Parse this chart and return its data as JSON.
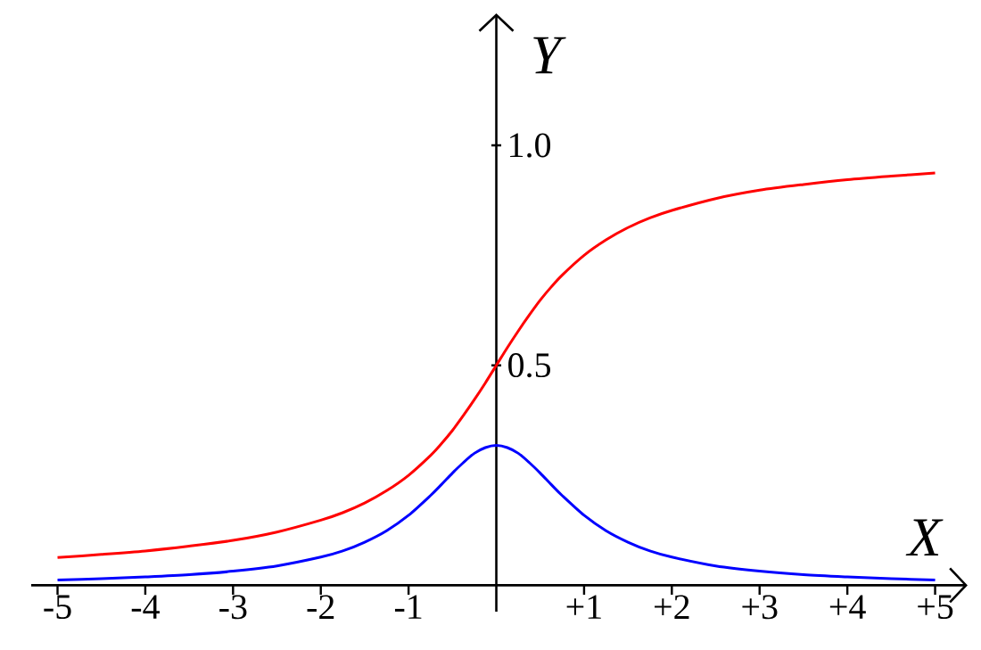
{
  "chart_data": {
    "type": "line",
    "xlabel": "X",
    "ylabel": "Y",
    "x": [
      -5,
      -4.5,
      -4,
      -3.5,
      -3,
      -2.5,
      -2,
      -1.75,
      -1.5,
      -1.25,
      -1,
      -0.75,
      -0.625,
      -0.5,
      -0.375,
      -0.25,
      -0.125,
      0,
      0.125,
      0.25,
      0.375,
      0.5,
      0.625,
      0.75,
      1,
      1.25,
      1.5,
      1.75,
      2,
      2.5,
      3,
      3.5,
      4,
      4.5,
      5
    ],
    "series": [
      {
        "color": "#ff0000",
        "values": [
          0.063,
          0.07,
          0.078,
          0.089,
          0.102,
          0.121,
          0.148,
          0.165,
          0.187,
          0.215,
          0.25,
          0.295,
          0.322,
          0.352,
          0.386,
          0.422,
          0.46,
          0.5,
          0.54,
          0.578,
          0.614,
          0.648,
          0.678,
          0.705,
          0.75,
          0.785,
          0.813,
          0.835,
          0.852,
          0.879,
          0.898,
          0.911,
          0.922,
          0.93,
          0.937
        ]
      },
      {
        "color": "#0000ff",
        "values": [
          0.012,
          0.015,
          0.019,
          0.024,
          0.032,
          0.044,
          0.064,
          0.078,
          0.098,
          0.124,
          0.159,
          0.204,
          0.229,
          0.255,
          0.279,
          0.3,
          0.313,
          0.318,
          0.313,
          0.3,
          0.279,
          0.255,
          0.229,
          0.204,
          0.159,
          0.124,
          0.098,
          0.078,
          0.064,
          0.044,
          0.032,
          0.024,
          0.019,
          0.015,
          0.012
        ]
      }
    ],
    "xlim": [
      -5.3,
      5.37
    ],
    "ylim": [
      -0.06,
      1.3
    ],
    "xticks": [
      -5,
      -4,
      -3,
      -2,
      -1,
      {
        "value": 1,
        "label": "+1"
      },
      {
        "value": 2,
        "label": "+2"
      },
      {
        "value": 3,
        "label": "+3"
      },
      {
        "value": 4,
        "label": "+4"
      },
      {
        "value": 5,
        "label": "+5"
      }
    ],
    "yticks": [
      0.5,
      {
        "value": 1,
        "label": "1.0"
      }
    ],
    "marker": "none",
    "line_style": "solid"
  }
}
